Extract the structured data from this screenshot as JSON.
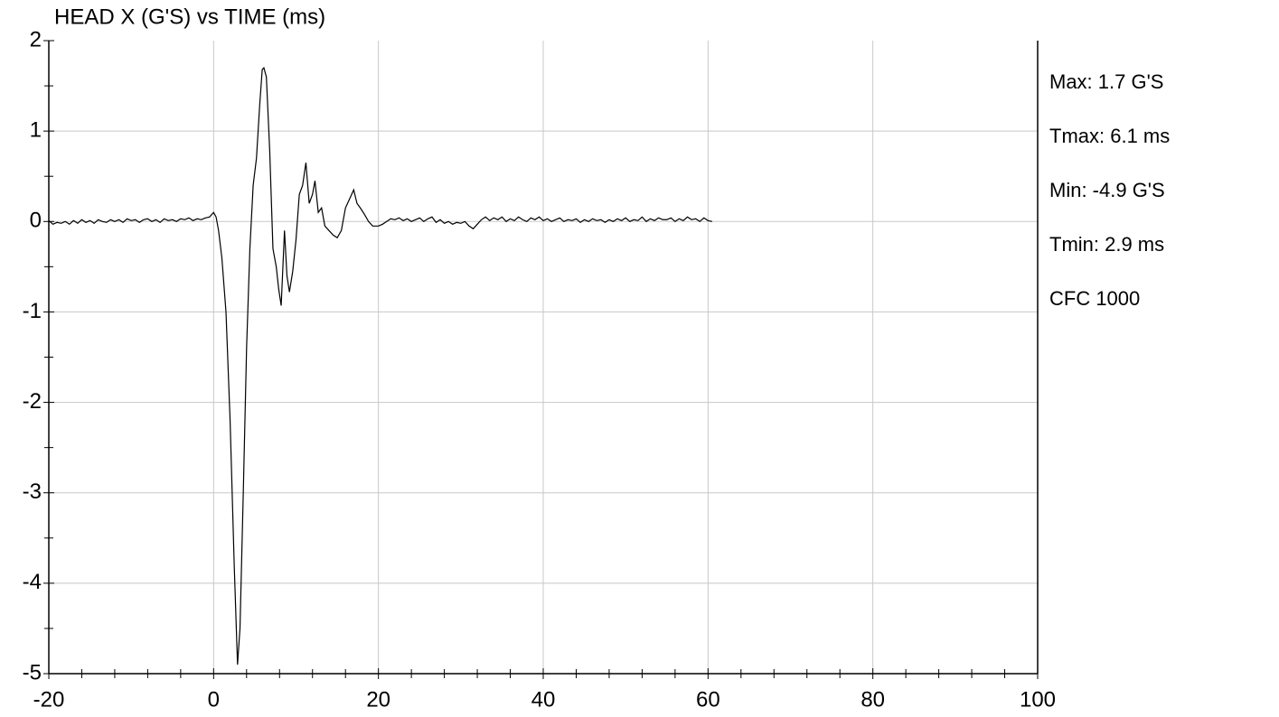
{
  "chart_data": {
    "type": "line",
    "title": "HEAD X (G'S) vs TIME (ms)",
    "annotations": [
      "Max: 1.7 G'S",
      "Tmax: 6.1 ms",
      "Min: -4.9 G'S",
      "Tmin: 2.9 ms",
      "CFC 1000"
    ],
    "xlim": [
      -20,
      100
    ],
    "xticks": [
      -20,
      0,
      20,
      40,
      60,
      80,
      100
    ],
    "ylim": [
      -5,
      2
    ],
    "yticks": [
      2,
      1,
      0,
      -1,
      -2,
      -3,
      -4,
      -5
    ],
    "grid": true,
    "series": [
      {
        "color": "#000000",
        "x": [
          -20,
          -19.5,
          -19,
          -18.5,
          -18,
          -17.5,
          -17,
          -16.5,
          -16,
          -15.5,
          -15,
          -14.5,
          -14,
          -13.5,
          -13,
          -12.5,
          -12,
          -11.5,
          -11,
          -10.5,
          -10,
          -9.5,
          -9,
          -8.5,
          -8,
          -7.5,
          -7,
          -6.5,
          -6,
          -5.5,
          -5,
          -4.5,
          -4,
          -3.5,
          -3,
          -2.5,
          -2,
          -1.5,
          -1,
          -0.5,
          0,
          0.3,
          0.6,
          1.0,
          1.5,
          2.0,
          2.5,
          2.9,
          3.2,
          3.6,
          4.0,
          4.4,
          4.8,
          5.2,
          5.6,
          5.9,
          6.1,
          6.4,
          6.8,
          7.2,
          7.6,
          7.9,
          8.2,
          8.6,
          8.9,
          9.2,
          9.6,
          10.0,
          10.4,
          10.8,
          11.2,
          11.6,
          12.0,
          12.3,
          12.7,
          13.1,
          13.5,
          14.0,
          14.5,
          15.0,
          15.5,
          16.0,
          16.5,
          17.0,
          17.4,
          17.8,
          18.3,
          18.8,
          19.3,
          20,
          20.5,
          21,
          21.5,
          22,
          22.5,
          23,
          23.5,
          24,
          24.5,
          25,
          25.5,
          26,
          26.5,
          27,
          27.5,
          28,
          28.5,
          29,
          29.5,
          30,
          30.5,
          31,
          31.5,
          32,
          32.5,
          33,
          33.5,
          34,
          34.5,
          35,
          35.5,
          36,
          36.5,
          37,
          37.5,
          38,
          38.5,
          39,
          39.5,
          40,
          40.5,
          41,
          41.5,
          42,
          42.5,
          43,
          43.5,
          44,
          44.5,
          45,
          45.5,
          46,
          46.5,
          47,
          47.5,
          48,
          48.5,
          49,
          49.5,
          50,
          50.5,
          51,
          51.5,
          52,
          52.5,
          53,
          53.5,
          54,
          54.5,
          55,
          55.5,
          56,
          56.5,
          57,
          57.5,
          58,
          58.5,
          59,
          59.5,
          60,
          60.5
        ],
        "values": [
          0.01,
          -0.03,
          -0.01,
          -0.02,
          0.0,
          -0.03,
          0.01,
          -0.02,
          0.02,
          -0.01,
          0.01,
          -0.02,
          0.02,
          0.0,
          -0.01,
          0.02,
          0.0,
          0.02,
          -0.01,
          0.03,
          0.01,
          0.02,
          -0.01,
          0.02,
          0.03,
          0.0,
          0.02,
          -0.01,
          0.03,
          0.01,
          0.02,
          0.0,
          0.03,
          0.02,
          0.04,
          0.01,
          0.03,
          0.02,
          0.04,
          0.05,
          0.1,
          0.05,
          -0.1,
          -0.4,
          -1.0,
          -2.2,
          -3.8,
          -4.9,
          -4.5,
          -3.0,
          -1.4,
          -0.3,
          0.4,
          0.7,
          1.3,
          1.68,
          1.7,
          1.6,
          0.8,
          -0.3,
          -0.5,
          -0.75,
          -0.93,
          -0.1,
          -0.6,
          -0.78,
          -0.55,
          -0.2,
          0.3,
          0.4,
          0.65,
          0.2,
          0.3,
          0.45,
          0.1,
          0.15,
          -0.05,
          -0.1,
          -0.15,
          -0.18,
          -0.1,
          0.15,
          0.25,
          0.35,
          0.2,
          0.15,
          0.08,
          0.0,
          -0.05,
          -0.05,
          -0.03,
          0.0,
          0.03,
          0.02,
          0.04,
          0.01,
          0.03,
          0.0,
          0.02,
          0.04,
          0.0,
          0.03,
          0.05,
          -0.01,
          0.02,
          -0.02,
          0.0,
          -0.03,
          -0.01,
          -0.02,
          0.0,
          -0.05,
          -0.08,
          -0.03,
          0.02,
          0.05,
          0.01,
          0.04,
          0.02,
          0.05,
          0.0,
          0.03,
          0.01,
          0.05,
          0.02,
          0.0,
          0.04,
          0.02,
          0.05,
          0.01,
          0.03,
          0.0,
          0.02,
          0.04,
          0.0,
          0.02,
          0.01,
          0.03,
          -0.01,
          0.02,
          0.0,
          0.03,
          0.01,
          0.02,
          -0.01,
          0.02,
          0.0,
          0.03,
          0.01,
          0.04,
          0.0,
          0.02,
          0.01,
          0.05,
          0.0,
          0.03,
          0.01,
          0.04,
          0.02,
          0.02,
          0.04,
          0.0,
          0.03,
          0.01,
          0.05,
          0.02,
          0.03,
          0.0,
          0.04,
          0.01,
          0.0
        ]
      }
    ]
  }
}
